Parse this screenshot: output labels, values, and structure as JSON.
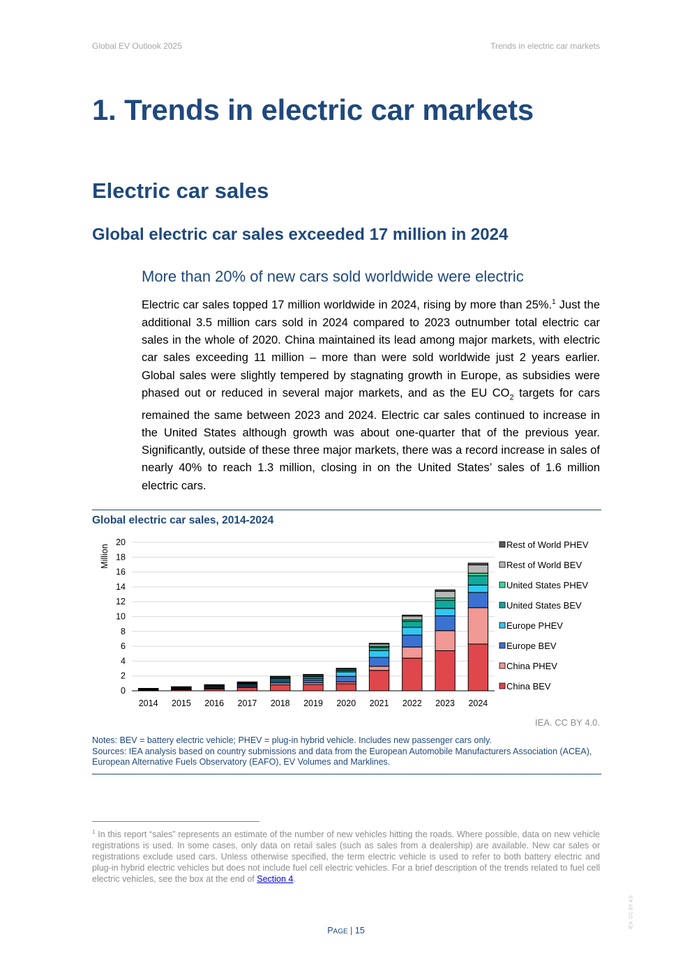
{
  "header": {
    "left": "Global EV Outlook 2025",
    "right": "Trends in electric car markets"
  },
  "headings": {
    "chapter": "1. Trends in electric car markets",
    "section": "Electric car sales",
    "subsection": "Global electric car sales exceeded 17 million in 2024",
    "subsubsection": "More than 20% of new cars sold worldwide were electric"
  },
  "body": {
    "p1_part1": "Electric car sales topped 17 million worldwide in 2024, rising by more than 25%.",
    "fn_ref": "1",
    "p1_part2": " Just the additional 3.5 million cars sold in 2024 compared to 2023 outnumber total electric car sales in the whole of 2020. China maintained its lead among major markets, with electric car sales exceeding 11 million – more than were sold worldwide just 2 years earlier. Global sales were slightly tempered by stagnating growth in Europe, as subsidies were phased out or reduced in several major markets, and as the EU CO",
    "p1_sub": "2",
    "p1_part3": " targets for cars remained the same between 2023 and 2024. Electric car sales continued to increase in the United States although growth was about one-quarter that of the previous year. Significantly, outside of these three major markets, there was a record increase in sales of nearly 40% to reach 1.3 million, closing in on the United States’ sales of 1.6 million electric cars."
  },
  "figure": {
    "title": "Global electric car sales, 2014-2024",
    "credit": "IEA. CC BY 4.0.",
    "notes": "Notes: BEV = battery electric vehicle; PHEV = plug-in hybrid vehicle. Includes new passenger cars only.",
    "sources": "Sources: IEA analysis based on country submissions and data from the European Automobile Manufacturers Association (ACEA), European Alternative Fuels Observatory (EAFO), EV Volumes and Marklines."
  },
  "chart_data": {
    "type": "bar",
    "stacked": true,
    "title": "Global electric car sales, 2014-2024",
    "ylabel": "Million",
    "xlabel": "",
    "ylim": [
      0,
      20
    ],
    "yticks": [
      0,
      2,
      4,
      6,
      8,
      10,
      12,
      14,
      16,
      18,
      20
    ],
    "grid": true,
    "legend_position": "right",
    "categories": [
      "2014",
      "2015",
      "2016",
      "2017",
      "2018",
      "2019",
      "2020",
      "2021",
      "2022",
      "2023",
      "2024"
    ],
    "series": [
      {
        "name": "China BEV",
        "color": "#e0474c",
        "values": [
          0.05,
          0.15,
          0.25,
          0.45,
          0.8,
          0.85,
          0.95,
          2.75,
          4.4,
          5.4,
          6.3
        ]
      },
      {
        "name": "China PHEV",
        "color": "#f19994",
        "values": [
          0.02,
          0.05,
          0.08,
          0.12,
          0.25,
          0.25,
          0.25,
          0.55,
          1.5,
          2.7,
          4.9
        ]
      },
      {
        "name": "Europe BEV",
        "color": "#3a72d1",
        "values": [
          0.05,
          0.1,
          0.12,
          0.17,
          0.2,
          0.35,
          0.75,
          1.2,
          1.6,
          2.0,
          2.05
        ]
      },
      {
        "name": "Europe PHEV",
        "color": "#31c7f2",
        "values": [
          0.05,
          0.1,
          0.12,
          0.14,
          0.19,
          0.21,
          0.6,
          0.9,
          1.05,
          1.0,
          1.0
        ]
      },
      {
        "name": "United States BEV",
        "color": "#10a89a",
        "values": [
          0.07,
          0.07,
          0.09,
          0.1,
          0.2,
          0.25,
          0.2,
          0.45,
          0.8,
          1.1,
          1.25
        ]
      },
      {
        "name": "United States PHEV",
        "color": "#3ed69a",
        "values": [
          0.05,
          0.04,
          0.07,
          0.09,
          0.12,
          0.08,
          0.07,
          0.15,
          0.2,
          0.3,
          0.35
        ]
      },
      {
        "name": "Rest of World BEV",
        "color": "#b7b7b7",
        "values": [
          0.02,
          0.02,
          0.05,
          0.07,
          0.12,
          0.15,
          0.15,
          0.3,
          0.5,
          0.9,
          1.1
        ]
      },
      {
        "name": "Rest of World PHEV",
        "color": "#5c5c5c",
        "values": [
          0.02,
          0.02,
          0.05,
          0.06,
          0.08,
          0.07,
          0.07,
          0.1,
          0.15,
          0.2,
          0.25
        ]
      }
    ]
  },
  "footnote": {
    "marker": "1",
    "text_before": " In this report “sales” represents an estimate of the number of new vehicles hitting the roads. Where possible, data on new vehicle registrations is used. In some cases, only data on retail sales (such as sales from a dealership) are available. New car sales or registrations exclude used cars. Unless otherwise specified, the term electric vehicle is used to refer to both battery electric and plug-in hybrid electric vehicles but does not include fuel cell electric vehicles. For a brief description of the trends related to fuel cell electric vehicles, see the box at the end of ",
    "link_text": "Section 4",
    "text_after": "."
  },
  "page": {
    "prefix": "P",
    "prefix_small": "AGE",
    "separator": " | ",
    "number": "15"
  },
  "side_watermark": "IEA. CC BY 4.0."
}
